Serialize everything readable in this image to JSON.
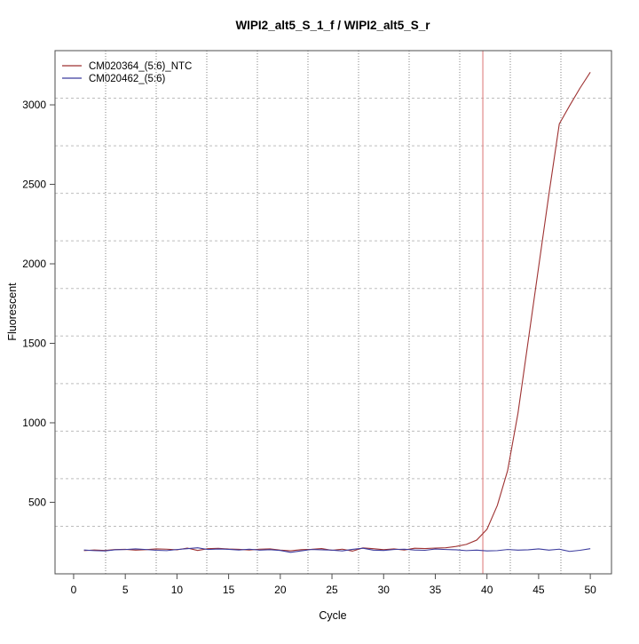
{
  "page": {
    "background_color": "#ffffff"
  },
  "chart_data": {
    "type": "line",
    "title": "WIPI2_alt5_S_1_f / WIPI2_alt5_S_r",
    "xlabel": "Cycle",
    "ylabel": "Fluorescent",
    "x_ticks": [
      0,
      5,
      10,
      15,
      20,
      25,
      30,
      35,
      40,
      45,
      50
    ],
    "y_ticks": [
      500,
      1000,
      1500,
      2000,
      2500,
      3000
    ],
    "xlim": [
      -1.8,
      52.05
    ],
    "ylim": [
      50,
      3341
    ],
    "grid": {
      "nx": 11,
      "ny": 11,
      "vertical_style": "dotted",
      "horizontal_style": "dashed",
      "vertical_color": "#828282",
      "horizontal_color": "#bdbdbd"
    },
    "axis_color": "#4d4d4d",
    "threshold_line": {
      "x": 39.6,
      "color": "#dc7474"
    },
    "legend": {
      "position": "top-left"
    },
    "x": [
      1,
      2,
      3,
      4,
      5,
      6,
      7,
      8,
      9,
      10,
      11,
      12,
      13,
      14,
      15,
      16,
      17,
      18,
      19,
      20,
      21,
      22,
      23,
      24,
      25,
      26,
      27,
      28,
      29,
      30,
      31,
      32,
      33,
      34,
      35,
      36,
      37,
      38,
      39,
      40,
      41,
      42,
      43,
      44,
      45,
      46,
      47,
      48,
      49,
      50
    ],
    "series": [
      {
        "name": "CM020364_(5:6)_NTC",
        "color": "#9e3232",
        "values": [
          196,
          200,
          197,
          203,
          204,
          199,
          202,
          207,
          205,
          201,
          212,
          197,
          208,
          210,
          206,
          204,
          200,
          205,
          207,
          199,
          195,
          202,
          204,
          209,
          198,
          205,
          193,
          213,
          208,
          202,
          207,
          200,
          211,
          209,
          212,
          214,
          222,
          235,
          262,
          330,
          480,
          700,
          1060,
          1520,
          1980,
          2440,
          2880,
          2995,
          3105,
          3205
        ]
      },
      {
        "name": "CM020462_(5:6)",
        "color": "#3c3c9e",
        "values": [
          200,
          196,
          194,
          201,
          203,
          207,
          203,
          198,
          196,
          203,
          208,
          214,
          203,
          206,
          204,
          200,
          205,
          199,
          202,
          197,
          185,
          194,
          203,
          201,
          199,
          194,
          204,
          211,
          199,
          197,
          203,
          205,
          200,
          198,
          206,
          203,
          201,
          196,
          199,
          194,
          196,
          203,
          199,
          201,
          207,
          199,
          205,
          191,
          198,
          208
        ]
      }
    ]
  }
}
